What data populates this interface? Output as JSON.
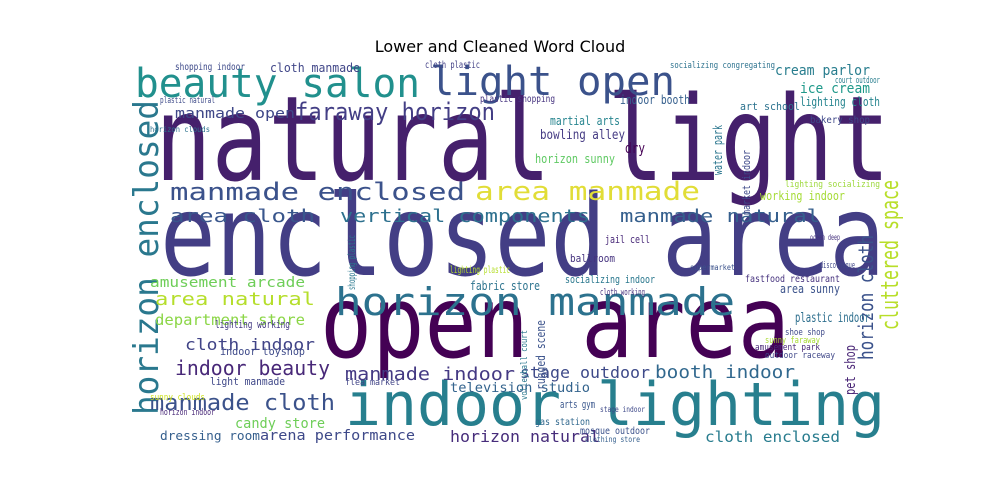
{
  "chart_data": {
    "type": "wordcloud",
    "title": "Lower and Cleaned Word Cloud",
    "words": [
      {
        "text": "natural light",
        "color": "#45206c"
      },
      {
        "text": "enclosed area",
        "color": "#433e85"
      },
      {
        "text": "open area",
        "color": "#440154"
      },
      {
        "text": "indoor lighting",
        "color": "#277f8e"
      },
      {
        "text": "beauty salon",
        "color": "#21908d"
      },
      {
        "text": "light open",
        "color": "#3b528b"
      },
      {
        "text": "horizon manmade",
        "color": "#2c728e"
      },
      {
        "text": "horizon enclosed",
        "color": "#2a788e"
      },
      {
        "text": "area manmade",
        "color": "#e1dd37"
      },
      {
        "text": "manmade enclosed",
        "color": "#3b528b"
      },
      {
        "text": "faraway horizon",
        "color": "#433e85"
      },
      {
        "text": "vertical components",
        "color": "#2d708e"
      },
      {
        "text": "manmade natural",
        "color": "#355f8d"
      },
      {
        "text": "area cloth",
        "color": "#39568c"
      },
      {
        "text": "area natural",
        "color": "#b5de2b"
      },
      {
        "text": "department store",
        "color": "#8bd646"
      },
      {
        "text": "amusement arcade",
        "color": "#6ece58"
      },
      {
        "text": "cloth indoor",
        "color": "#414487"
      },
      {
        "text": "indoor beauty",
        "color": "#482878"
      },
      {
        "text": "manmade cloth",
        "color": "#3b528b"
      },
      {
        "text": "candy store",
        "color": "#6ece58"
      },
      {
        "text": "dressing room",
        "color": "#355f8d"
      },
      {
        "text": "arena performance",
        "color": "#3e4989"
      },
      {
        "text": "manmade indoor",
        "color": "#443983"
      },
      {
        "text": "stage outdoor",
        "color": "#3e4a89"
      },
      {
        "text": "booth indoor",
        "color": "#31688e"
      },
      {
        "text": "horizon natural",
        "color": "#472d7b"
      },
      {
        "text": "cloth enclosed",
        "color": "#287c8e"
      },
      {
        "text": "television studio",
        "color": "#33638d"
      },
      {
        "text": "cluttered space",
        "color": "#b8de29"
      },
      {
        "text": "horizon cloth",
        "color": "#3b528b"
      },
      {
        "text": "pet shop",
        "color": "#482475"
      },
      {
        "text": "cream parlor",
        "color": "#287d8e"
      },
      {
        "text": "ice cream",
        "color": "#1f998a"
      },
      {
        "text": "lighting cloth",
        "color": "#25848e"
      },
      {
        "text": "art school",
        "color": "#2c728e"
      },
      {
        "text": "bakery shop",
        "color": "#3f4889"
      },
      {
        "text": "indoor booth",
        "color": "#355f8d"
      },
      {
        "text": "martial arts",
        "color": "#25848e"
      },
      {
        "text": "bowling alley",
        "color": "#443a83"
      },
      {
        "text": "manmade open",
        "color": "#3f4788"
      },
      {
        "text": "cloth manmade",
        "color": "#404688"
      },
      {
        "text": "shopping indoor",
        "color": "#3e4a89"
      },
      {
        "text": "cloth plastic",
        "color": "#424086"
      },
      {
        "text": "plastic shopping",
        "color": "#46337f"
      },
      {
        "text": "horizon sunny",
        "color": "#5ec962"
      },
      {
        "text": "dry",
        "color": "#440154"
      },
      {
        "text": "water park",
        "color": "#2a768e"
      },
      {
        "text": "market indoor",
        "color": "#3e4989"
      },
      {
        "text": "working indoor",
        "color": "#a5db36"
      },
      {
        "text": "lighting socializing",
        "color": "#9dd93b"
      },
      {
        "text": "plastic indoor",
        "color": "#2e6f8e"
      },
      {
        "text": "area sunny",
        "color": "#3b528b"
      },
      {
        "text": "fastfood restaurant",
        "color": "#46327e"
      },
      {
        "text": "amusement park",
        "color": "#482878"
      },
      {
        "text": "shoe shop",
        "color": "#3e4989"
      },
      {
        "text": "sunny faraway",
        "color": "#a8db34"
      },
      {
        "text": "outdoor raceway",
        "color": "#3f4788"
      },
      {
        "text": "jail cell",
        "color": "#482878"
      },
      {
        "text": "ballroom",
        "color": "#46337f"
      },
      {
        "text": "socializing indoor",
        "color": "#2a788e"
      },
      {
        "text": "fabric store",
        "color": "#2c738e"
      },
      {
        "text": "rugged scene",
        "color": "#3b528b"
      },
      {
        "text": "volleyball court",
        "color": "#2a788e"
      },
      {
        "text": "lighting working",
        "color": "#443a83"
      },
      {
        "text": "indoor toyshop",
        "color": "#3e4a89"
      },
      {
        "text": "light manmade",
        "color": "#3f4788"
      },
      {
        "text": "arts gym",
        "color": "#39568c"
      },
      {
        "text": "gas station",
        "color": "#31688e"
      },
      {
        "text": "flea market",
        "color": "#414487"
      },
      {
        "text": "supermarket",
        "color": "#3b528b"
      },
      {
        "text": "ocean deep",
        "color": "#46327e"
      },
      {
        "text": "plastic natural",
        "color": "#3e4a89"
      },
      {
        "text": "horizon clouds",
        "color": "#2c728e"
      },
      {
        "text": "lighting plastic",
        "color": "#b5de2b"
      },
      {
        "text": "mosque outdoor",
        "color": "#3b528b"
      },
      {
        "text": "clothing store",
        "color": "#355f8d"
      },
      {
        "text": "horizon indoor",
        "color": "#482878"
      },
      {
        "text": "sunny clouds",
        "color": "#cde11d"
      },
      {
        "text": "stage indoor",
        "color": "#3e4989"
      },
      {
        "text": "socializing congregating",
        "color": "#2c728e"
      },
      {
        "text": "court outdoor",
        "color": "#287d8e"
      },
      {
        "text": "cloth working",
        "color": "#46327e"
      },
      {
        "text": "shopping plastic",
        "color": "#2a788e"
      },
      {
        "text": "discotheque",
        "color": "#3f4788"
      }
    ]
  }
}
